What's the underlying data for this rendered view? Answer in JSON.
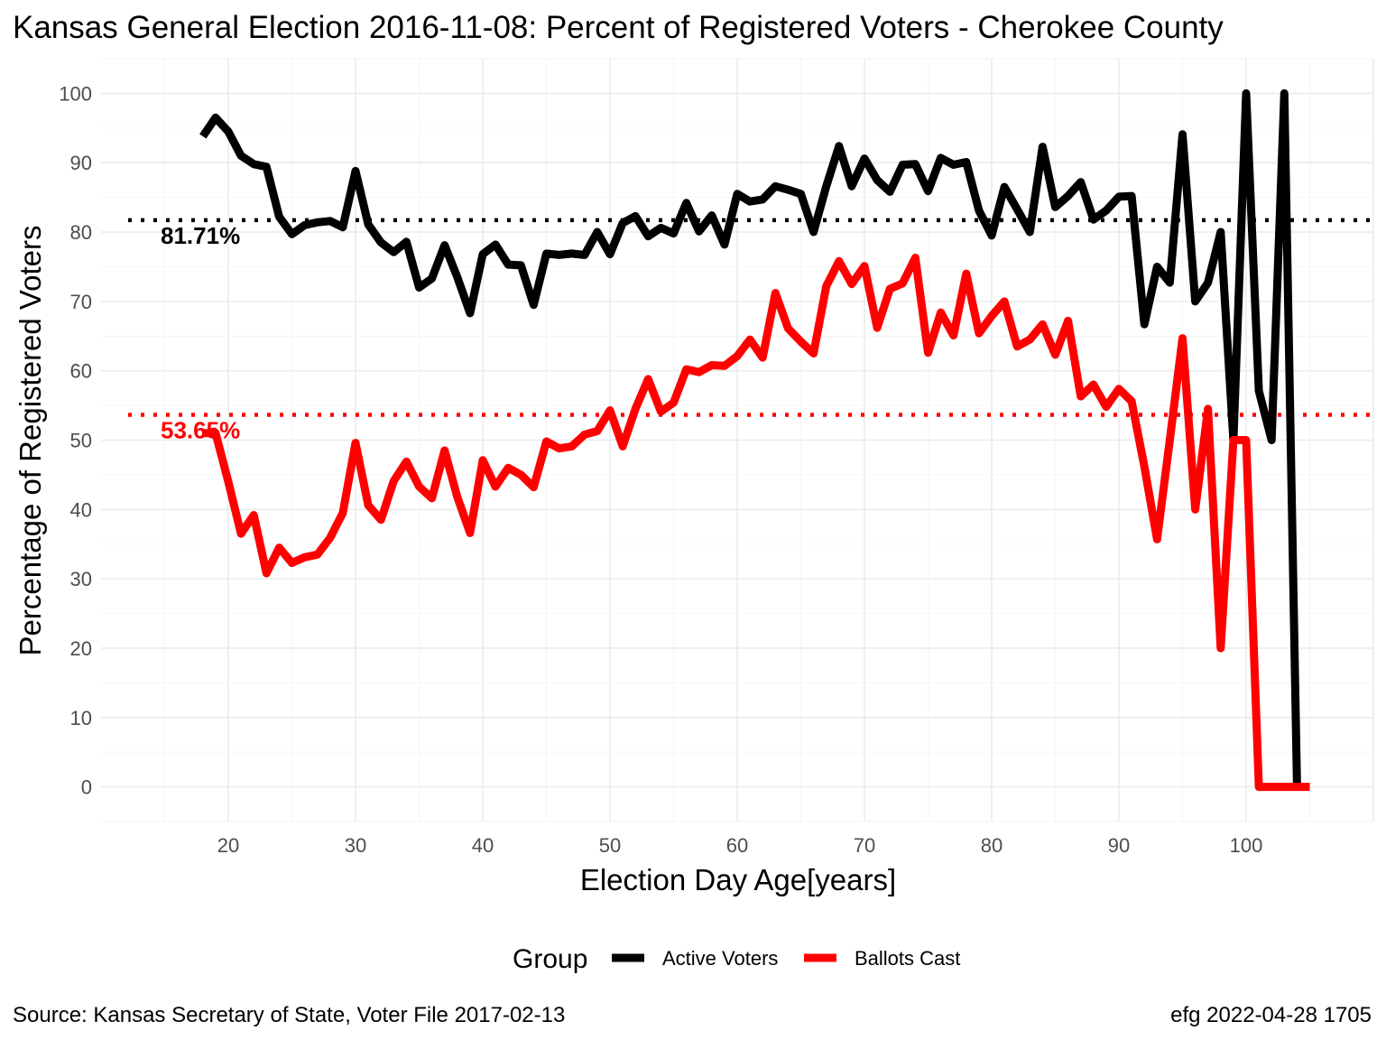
{
  "chart_data": {
    "type": "line",
    "title": "Kansas General Election 2016-11-08:  Percent of Registered Voters - Cherokee County",
    "xlabel": "Election Day Age[years]",
    "ylabel": "Percentage of Registered Voters",
    "xlim": [
      10,
      110
    ],
    "ylim": [
      -5,
      105
    ],
    "x_ticks": [
      20,
      30,
      40,
      50,
      60,
      70,
      80,
      90,
      100
    ],
    "y_ticks": [
      0,
      10,
      20,
      30,
      40,
      50,
      60,
      70,
      80,
      90,
      100
    ],
    "grid": true,
    "legend": {
      "title": "Group",
      "position": "bottom"
    },
    "reference_lines": [
      {
        "series": "Active Voters",
        "value": 81.71,
        "label": "81.71%",
        "color": "#000000"
      },
      {
        "series": "Ballots Cast",
        "value": 53.65,
        "label": "53.65%",
        "color": "#ff0000"
      }
    ],
    "series": [
      {
        "name": "Active Voters",
        "color": "#000000",
        "x": [
          18,
          19,
          20,
          21,
          22,
          23,
          24,
          25,
          26,
          27,
          28,
          29,
          30,
          31,
          32,
          33,
          34,
          35,
          36,
          37,
          38,
          39,
          40,
          41,
          42,
          43,
          44,
          45,
          46,
          47,
          48,
          49,
          50,
          51,
          52,
          53,
          54,
          55,
          56,
          57,
          58,
          59,
          60,
          61,
          62,
          63,
          64,
          65,
          66,
          67,
          68,
          69,
          70,
          71,
          72,
          73,
          74,
          75,
          76,
          77,
          78,
          79,
          80,
          81,
          82,
          83,
          84,
          85,
          86,
          87,
          88,
          89,
          90,
          91,
          92,
          93,
          94,
          95,
          96,
          97,
          98,
          99,
          100,
          101,
          102,
          103,
          104
        ],
        "values": [
          93.8,
          96.5,
          94.5,
          91,
          89.8,
          89.4,
          82.2,
          79.7,
          81,
          81.4,
          81.6,
          80.7,
          88.8,
          81.1,
          78.5,
          77.1,
          78.6,
          72,
          73.3,
          78.1,
          73.5,
          68.3,
          76.8,
          78.2,
          75.3,
          75.2,
          69.5,
          76.9,
          76.7,
          76.9,
          76.7,
          80,
          76.8,
          81.3,
          82.3,
          79.4,
          80.6,
          79.8,
          84.2,
          80.1,
          82.4,
          78.2,
          85.5,
          84.4,
          84.7,
          86.6,
          86.1,
          85.5,
          80,
          86.6,
          92.4,
          86.6,
          90.6,
          87.5,
          85.8,
          89.7,
          89.8,
          85.9,
          90.7,
          89.7,
          90.1,
          83.1,
          79.5,
          86.5,
          83.3,
          80,
          92.3,
          83.6,
          85.2,
          87.2,
          81.8,
          83.1,
          85.1,
          85.2,
          66.7,
          75,
          72.7,
          94.1,
          70,
          72.7,
          80,
          50,
          100,
          57.1,
          50,
          100,
          0
        ]
      },
      {
        "name": "Ballots Cast",
        "color": "#ff0000",
        "x": [
          18,
          19,
          20,
          21,
          22,
          23,
          24,
          25,
          26,
          27,
          28,
          29,
          30,
          31,
          32,
          33,
          34,
          35,
          36,
          37,
          38,
          39,
          40,
          41,
          42,
          43,
          44,
          45,
          46,
          47,
          48,
          49,
          50,
          51,
          52,
          53,
          54,
          55,
          56,
          57,
          58,
          59,
          60,
          61,
          62,
          63,
          64,
          65,
          66,
          67,
          68,
          69,
          70,
          71,
          72,
          73,
          74,
          75,
          76,
          77,
          78,
          79,
          80,
          81,
          82,
          83,
          84,
          85,
          86,
          87,
          88,
          89,
          90,
          91,
          92,
          93,
          94,
          95,
          96,
          97,
          98,
          99,
          100,
          101,
          102,
          103,
          104,
          105
        ],
        "values": [
          51,
          51,
          44,
          36.5,
          39.2,
          30.8,
          34.5,
          32.3,
          33.1,
          33.5,
          35.9,
          39.5,
          49.6,
          40.6,
          38.5,
          44.1,
          46.9,
          43.3,
          41.6,
          48.5,
          41.8,
          36.6,
          47.1,
          43.3,
          46,
          45,
          43.2,
          49.8,
          48.8,
          49.1,
          50.8,
          51.3,
          54.3,
          49.1,
          54.5,
          58.8,
          54.1,
          55.4,
          60.2,
          59.8,
          60.8,
          60.7,
          62.1,
          64.5,
          61.9,
          71.2,
          66.1,
          64.2,
          62.5,
          72.2,
          75.8,
          72.5,
          75.1,
          66.2,
          71.8,
          72.6,
          76.3,
          62.6,
          68.4,
          65.1,
          74,
          65.4,
          67.9,
          70,
          63.5,
          64.5,
          66.7,
          62.3,
          67.2,
          56.3,
          58,
          54.8,
          57.4,
          55.6,
          46.2,
          35.7,
          50,
          64.7,
          40,
          54.5,
          20,
          50,
          50,
          0,
          0,
          0,
          0,
          0
        ]
      }
    ],
    "caption_left": "Source:  Kansas Secretary of State, Voter File  2017-02-13",
    "caption_right": "efg 2022-04-28 1705"
  }
}
